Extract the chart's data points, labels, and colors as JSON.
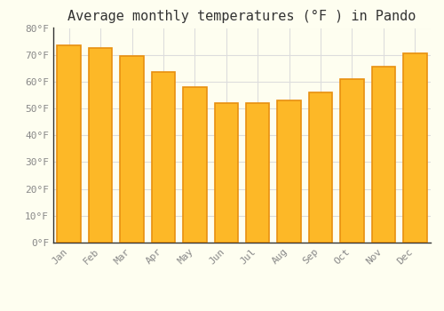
{
  "title": "Average monthly temperatures (°F ) in Pando",
  "months": [
    "Jan",
    "Feb",
    "Mar",
    "Apr",
    "May",
    "Jun",
    "Jul",
    "Aug",
    "Sep",
    "Oct",
    "Nov",
    "Dec"
  ],
  "values": [
    73.5,
    72.5,
    69.5,
    63.5,
    58,
    52,
    52,
    53,
    56,
    61,
    65.5,
    70.5
  ],
  "bar_color": "#FDB827",
  "bar_edge_color": "#E89010",
  "background_color": "#FEFEF0",
  "grid_color": "#DDDDDD",
  "ylim": [
    0,
    80
  ],
  "yticks": [
    0,
    10,
    20,
    30,
    40,
    50,
    60,
    70,
    80
  ],
  "title_fontsize": 11,
  "tick_fontsize": 8,
  "tick_color": "#888888",
  "font_family": "monospace",
  "left_spine_color": "#333333"
}
